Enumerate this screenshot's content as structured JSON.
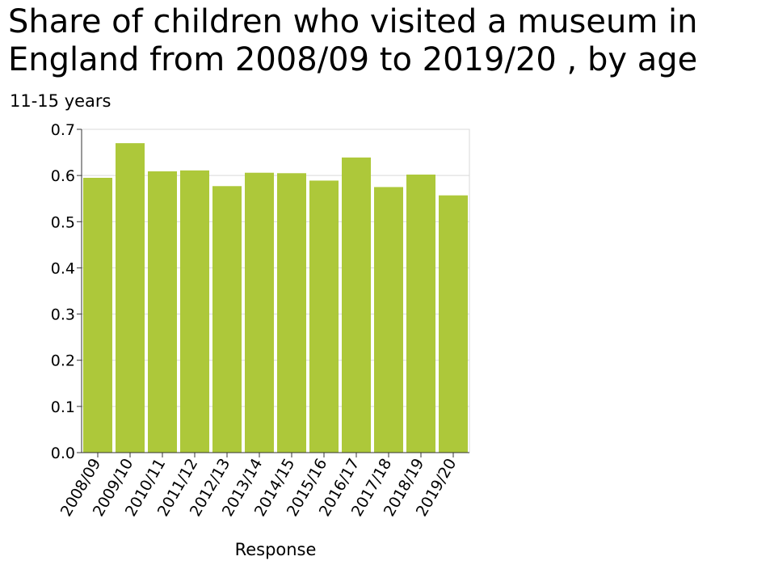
{
  "chart_data": {
    "type": "bar",
    "title": "Share of children who visited a museum in England from 2008/09 to 2019/20 , by age",
    "subtitle": "11-15 years",
    "xlabel": "Response",
    "ylabel": "",
    "categories": [
      "2008/09",
      "2009/10",
      "2010/11",
      "2011/12",
      "2012/13",
      "2013/14",
      "2014/15",
      "2015/16",
      "2016/17",
      "2017/18",
      "2018/19",
      "2019/20"
    ],
    "values": [
      0.595,
      0.67,
      0.609,
      0.611,
      0.577,
      0.606,
      0.605,
      0.589,
      0.639,
      0.575,
      0.602,
      0.557
    ],
    "ylim": [
      0,
      0.7
    ],
    "yticks": [
      "0.0",
      "0.1",
      "0.2",
      "0.3",
      "0.4",
      "0.5",
      "0.6",
      "0.7"
    ],
    "grid": true,
    "bar_color": "#adc83a",
    "grid_color": "#d9d9d9"
  }
}
